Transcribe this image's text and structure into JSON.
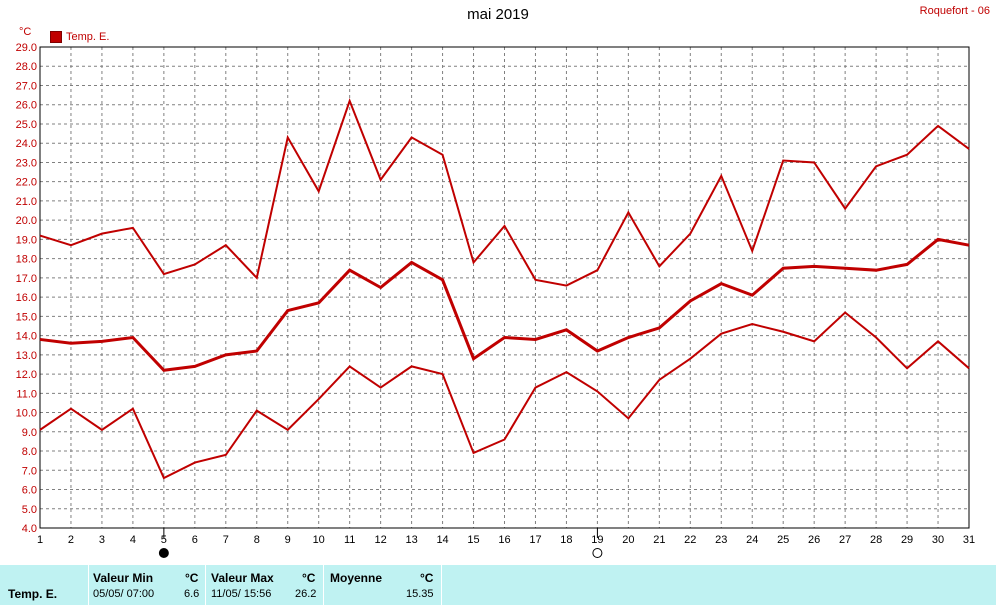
{
  "title": "mai 2019",
  "station": "Roquefort - 06",
  "unit": "°C",
  "legend": {
    "label": "Temp. E.",
    "color": "#c00000"
  },
  "chart_data": {
    "type": "line",
    "title": "mai 2019",
    "x": [
      1,
      2,
      3,
      4,
      5,
      6,
      7,
      8,
      9,
      10,
      11,
      12,
      13,
      14,
      15,
      16,
      17,
      18,
      19,
      20,
      21,
      22,
      23,
      24,
      25,
      26,
      27,
      28,
      29,
      30,
      31
    ],
    "ylim": [
      4.0,
      29.0
    ],
    "ystep": 1.0,
    "grid": true,
    "legend_position": "top-left",
    "series": [
      {
        "name": "Temp. E.",
        "role": "max",
        "color": "#c00000",
        "values": [
          19.2,
          18.7,
          19.3,
          19.6,
          17.2,
          17.7,
          18.7,
          17.0,
          24.3,
          21.5,
          26.2,
          22.1,
          24.3,
          23.4,
          17.8,
          19.7,
          16.9,
          16.6,
          17.4,
          20.4,
          17.6,
          19.3,
          22.3,
          18.4,
          23.1,
          23.0,
          20.6,
          22.8,
          23.4,
          24.9,
          23.7
        ]
      },
      {
        "role": "mean",
        "color": "#c00000",
        "values": [
          13.8,
          13.6,
          13.7,
          13.9,
          12.2,
          12.4,
          13.0,
          13.2,
          15.3,
          15.7,
          17.4,
          16.5,
          17.8,
          16.9,
          12.8,
          13.9,
          13.8,
          14.3,
          13.2,
          13.9,
          14.4,
          15.8,
          16.7,
          16.1,
          17.5,
          17.6,
          17.5,
          17.4,
          17.7,
          19.0,
          18.7
        ]
      },
      {
        "role": "min",
        "color": "#c00000",
        "values": [
          9.1,
          10.2,
          9.1,
          10.2,
          6.6,
          7.4,
          7.8,
          10.1,
          9.1,
          10.7,
          12.4,
          11.3,
          12.4,
          12.0,
          7.9,
          8.6,
          11.3,
          12.1,
          11.1,
          9.7,
          11.7,
          12.8,
          14.1,
          14.6,
          14.2,
          13.7,
          15.2,
          13.9,
          12.3,
          13.7,
          12.3
        ]
      }
    ],
    "moon_phases": [
      {
        "day": 5,
        "phase": "new"
      },
      {
        "day": 19,
        "phase": "full"
      }
    ]
  },
  "stats": {
    "name": "Temp. E.",
    "min": {
      "header": "Valeur Min",
      "unit": "°C",
      "when": "05/05/  07:00",
      "value": "6.6"
    },
    "max": {
      "header": "Valeur Max",
      "unit": "°C",
      "when": "11/05/  15:56",
      "value": "26.2"
    },
    "avg": {
      "header": "Moyenne",
      "unit": "°C",
      "value": "15.35"
    }
  }
}
